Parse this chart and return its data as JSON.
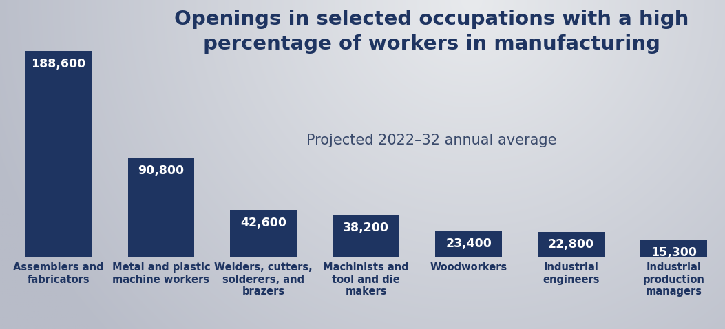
{
  "categories": [
    "Assemblers and\nfabricators",
    "Metal and plastic\nmachine workers",
    "Welders, cutters,\nsolderers, and\nbrazers",
    "Machinists and\ntool and die\nmakers",
    "Woodworkers",
    "Industrial\nengineers",
    "Industrial\nproduction\nmanagers"
  ],
  "values": [
    188600,
    90800,
    42600,
    38200,
    23400,
    22800,
    15300
  ],
  "labels": [
    "188,600",
    "90,800",
    "42,600",
    "38,200",
    "23,400",
    "22,800",
    "15,300"
  ],
  "bar_color": "#1e3461",
  "title_line1": "Openings in selected occupations with a high",
  "title_line2": "percentage of workers in manufacturing",
  "subtitle": "Projected 2022–32 annual average",
  "title_color": "#1e3461",
  "subtitle_color": "#3a4a6b",
  "label_color": "#ffffff",
  "xlabel_color": "#1e3461",
  "bg_color_light": "#e8eaed",
  "bg_color_dark": "#c5c8d0",
  "ylim": [
    0,
    205000
  ],
  "title_fontsize": 21,
  "subtitle_fontsize": 15,
  "bar_label_fontsize": 12.5,
  "xlabel_fontsize": 10.5,
  "bar_width": 0.65
}
